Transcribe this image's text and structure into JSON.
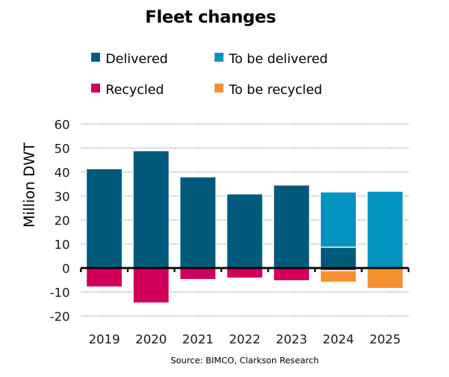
{
  "chart_data": {
    "type": "bar",
    "stacked": true,
    "title": "Fleet changes",
    "xlabel": "",
    "ylabel": "Million DWT",
    "ylim": [
      -20,
      60
    ],
    "yticks": [
      60,
      50,
      40,
      30,
      20,
      10,
      0,
      -10,
      -20
    ],
    "ytick_labels": [
      "60",
      "50",
      "40",
      "30",
      "20",
      "10",
      "0",
      "-10",
      "-20"
    ],
    "grid": true,
    "legend_position": "top",
    "categories": [
      "2019",
      "2020",
      "2021",
      "2022",
      "2023",
      "2024",
      "2025"
    ],
    "series": [
      {
        "name": "Delivered",
        "color": "#005a7c",
        "values": [
          41.4,
          48.9,
          38.0,
          30.9,
          34.6,
          8.7,
          0
        ]
      },
      {
        "name": "To be delivered",
        "color": "#0093bd",
        "values": [
          0,
          0,
          0,
          0,
          0,
          23.0,
          32.0
        ]
      },
      {
        "name": "Recycled",
        "color": "#d0005a",
        "values": [
          -7.9,
          -14.6,
          -4.8,
          -4.2,
          -5.3,
          -1.1,
          0
        ]
      },
      {
        "name": "To be recycled",
        "color": "#f39130",
        "values": [
          0,
          0,
          0,
          0,
          0,
          -4.8,
          -8.5
        ]
      }
    ],
    "source": "Source: BIMCO, Clarkson Research"
  }
}
